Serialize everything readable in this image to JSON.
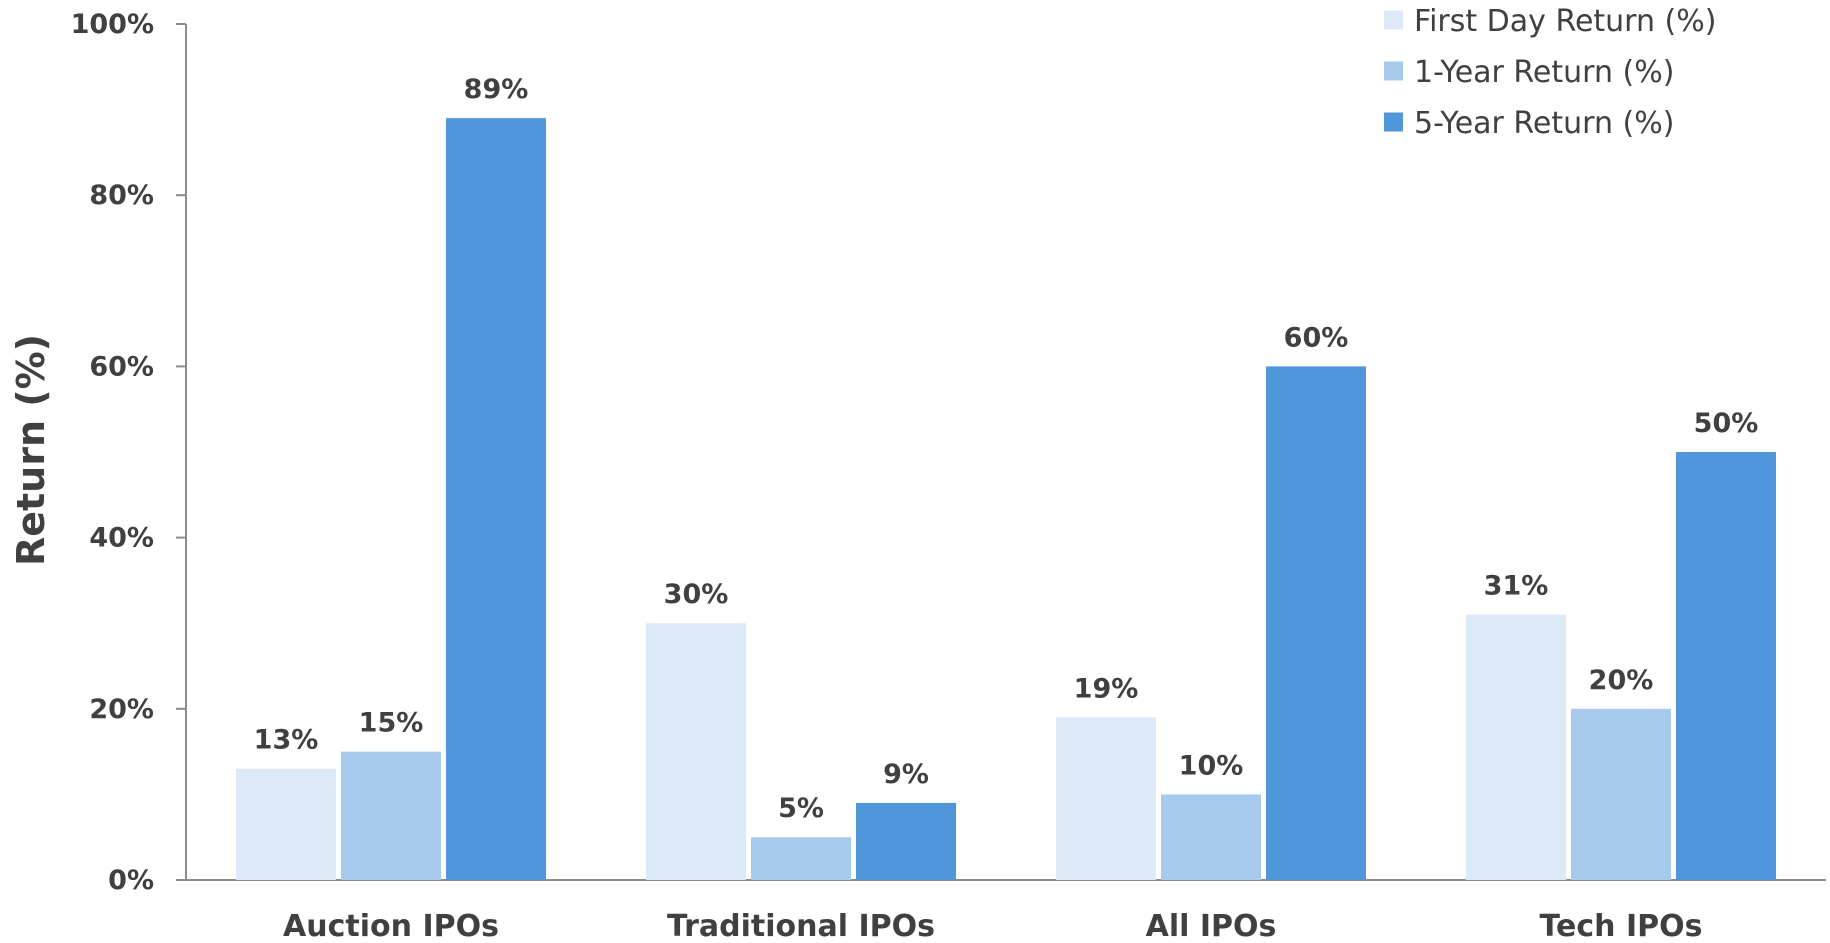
{
  "chart_data": {
    "type": "bar",
    "title": "",
    "xlabel": "",
    "ylabel": "Return (%)",
    "ylim": [
      0,
      100
    ],
    "yticks": [
      0,
      20,
      40,
      60,
      80,
      100
    ],
    "ytick_labels": [
      "0%",
      "20%",
      "40%",
      "60%",
      "80%",
      "100%"
    ],
    "grid": false,
    "legend_position": "top-right",
    "categories": [
      "Auction IPOs",
      "Traditional IPOs",
      "All IPOs",
      "Tech IPOs"
    ],
    "series": [
      {
        "name": "First Day Return (%)",
        "color": "#dce9f7",
        "values": [
          13,
          30,
          19,
          31
        ],
        "labels": [
          "13%",
          "30%",
          "19%",
          "31%"
        ]
      },
      {
        "name": "1-Year Return (%)",
        "color": "#a7caec",
        "values": [
          15,
          5,
          10,
          20
        ],
        "labels": [
          "15%",
          "5%",
          "10%",
          "20%"
        ]
      },
      {
        "name": "5-Year Return (%)",
        "color": "#5096db",
        "values": [
          89,
          9,
          60,
          50
        ],
        "labels": [
          "89%",
          "9%",
          "60%",
          "50%"
        ]
      }
    ]
  }
}
